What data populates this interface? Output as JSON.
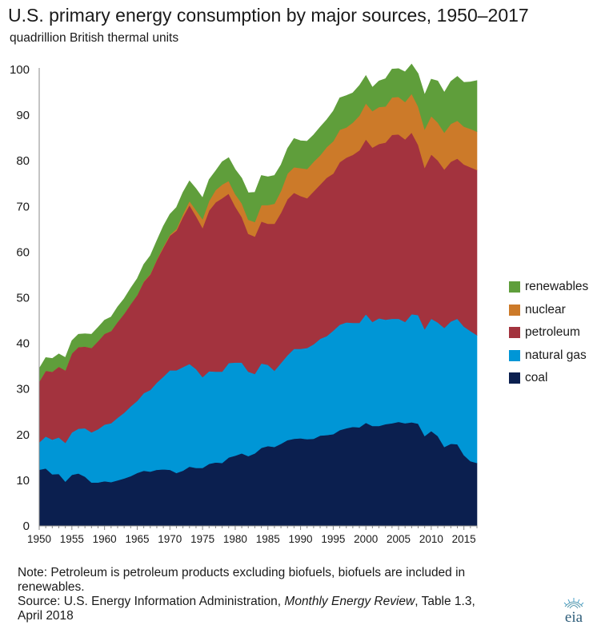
{
  "header": {
    "title": "U.S. primary energy consumption by major sources, 1950–2017",
    "subtitle": "quadrillion British thermal units"
  },
  "footer": {
    "note": "Note: Petroleum is petroleum products excluding biofuels, biofuels are included in renewables.",
    "source_prefix": "Source: U.S. Energy Information Administration, ",
    "source_italic": "Monthly Energy Review",
    "source_suffix": ", Table 1.3, April 2018"
  },
  "logo": {
    "text": "eia"
  },
  "chart_data": {
    "type": "area",
    "stacked": true,
    "x": [
      1950,
      1951,
      1952,
      1953,
      1954,
      1955,
      1956,
      1957,
      1958,
      1959,
      1960,
      1961,
      1962,
      1963,
      1964,
      1965,
      1966,
      1967,
      1968,
      1969,
      1970,
      1971,
      1972,
      1973,
      1974,
      1975,
      1976,
      1977,
      1978,
      1979,
      1980,
      1981,
      1982,
      1983,
      1984,
      1985,
      1986,
      1987,
      1988,
      1989,
      1990,
      1991,
      1992,
      1993,
      1994,
      1995,
      1996,
      1997,
      1998,
      1999,
      2000,
      2001,
      2002,
      2003,
      2004,
      2005,
      2006,
      2007,
      2008,
      2009,
      2010,
      2011,
      2012,
      2013,
      2014,
      2015,
      2016,
      2017
    ],
    "ylim": [
      0,
      100
    ],
    "yticks": [
      0,
      10,
      20,
      30,
      40,
      50,
      60,
      70,
      80,
      90,
      100
    ],
    "xticks": [
      1950,
      1955,
      1960,
      1965,
      1970,
      1975,
      1980,
      1985,
      1990,
      1995,
      2000,
      2005,
      2010,
      2015
    ],
    "grid": false,
    "legend_position": "right",
    "series": [
      {
        "name": "coal",
        "color": "#0b1f4f",
        "values": [
          12.3,
          12.6,
          11.3,
          11.4,
          9.7,
          11.2,
          11.5,
          10.8,
          9.5,
          9.5,
          9.8,
          9.6,
          10.0,
          10.4,
          10.9,
          11.6,
          12.1,
          11.9,
          12.3,
          12.4,
          12.3,
          11.6,
          12.1,
          13.0,
          12.7,
          12.7,
          13.6,
          13.9,
          13.8,
          15.0,
          15.4,
          15.9,
          15.3,
          15.9,
          17.1,
          17.5,
          17.3,
          18.0,
          18.8,
          19.1,
          19.2,
          19.0,
          19.1,
          19.8,
          19.9,
          20.1,
          21.0,
          21.4,
          21.7,
          21.6,
          22.6,
          21.9,
          21.9,
          22.3,
          22.5,
          22.8,
          22.5,
          22.7,
          22.4,
          19.7,
          20.8,
          19.7,
          17.3,
          18.0,
          17.9,
          15.5,
          14.2,
          13.8
        ]
      },
      {
        "name": "natural gas",
        "color": "#0096d6",
        "values": [
          6.0,
          7.0,
          7.6,
          8.0,
          8.5,
          9.3,
          9.8,
          10.6,
          11.0,
          11.7,
          12.4,
          12.9,
          13.7,
          14.4,
          15.3,
          15.8,
          17.0,
          17.9,
          19.1,
          20.3,
          21.8,
          22.5,
          22.7,
          22.5,
          21.7,
          19.9,
          20.3,
          19.9,
          20.0,
          20.7,
          20.4,
          19.9,
          18.5,
          17.4,
          18.5,
          17.8,
          16.7,
          17.7,
          18.6,
          19.7,
          19.6,
          20.0,
          20.7,
          21.2,
          21.7,
          22.7,
          23.1,
          23.2,
          22.8,
          22.9,
          23.8,
          22.8,
          23.6,
          22.9,
          22.9,
          22.6,
          22.2,
          23.7,
          23.8,
          23.4,
          24.6,
          24.9,
          26.1,
          26.8,
          27.5,
          28.2,
          28.5,
          28.0
        ]
      },
      {
        "name": "petroleum",
        "color": "#a3333e",
        "values": [
          13.3,
          14.4,
          14.9,
          15.5,
          15.9,
          17.3,
          17.9,
          17.9,
          18.5,
          19.3,
          19.9,
          20.2,
          21.0,
          21.7,
          22.4,
          23.2,
          24.4,
          25.3,
          26.9,
          28.3,
          29.5,
          30.6,
          32.9,
          34.8,
          33.5,
          32.7,
          35.2,
          37.1,
          38.0,
          37.1,
          34.2,
          31.9,
          30.2,
          30.1,
          31.1,
          30.9,
          32.2,
          32.9,
          34.2,
          34.2,
          33.5,
          32.8,
          33.5,
          33.8,
          34.7,
          34.4,
          35.6,
          36.1,
          36.8,
          37.8,
          38.3,
          38.2,
          38.2,
          38.8,
          40.3,
          40.4,
          40.0,
          39.8,
          37.3,
          35.4,
          36.0,
          35.5,
          34.7,
          35.0,
          35.1,
          35.5,
          35.9,
          36.2
        ]
      },
      {
        "name": "nuclear",
        "color": "#cc7a29",
        "values": [
          0,
          0,
          0,
          0,
          0,
          0,
          0,
          0,
          0,
          0,
          0,
          0,
          0,
          0,
          0,
          0,
          0.1,
          0.1,
          0.1,
          0.2,
          0.2,
          0.4,
          0.6,
          0.9,
          1.3,
          1.9,
          2.1,
          2.7,
          3.0,
          2.8,
          2.7,
          3.0,
          3.1,
          3.2,
          3.6,
          4.1,
          4.4,
          4.8,
          5.6,
          5.6,
          6.1,
          6.4,
          6.5,
          6.4,
          6.7,
          7.1,
          7.1,
          6.6,
          7.1,
          7.6,
          7.9,
          8.0,
          8.1,
          7.9,
          8.2,
          8.2,
          8.2,
          8.5,
          8.4,
          8.4,
          8.4,
          8.3,
          8.1,
          8.3,
          8.3,
          8.3,
          8.4,
          8.4
        ]
      },
      {
        "name": "renewables",
        "color": "#5f9e3b",
        "values": [
          2.9,
          2.9,
          2.9,
          2.8,
          2.8,
          2.8,
          2.8,
          2.8,
          3.0,
          3.0,
          3.0,
          3.1,
          3.3,
          3.3,
          3.5,
          3.6,
          3.7,
          4.0,
          4.1,
          4.5,
          4.5,
          4.7,
          4.8,
          4.4,
          4.7,
          4.7,
          4.7,
          4.2,
          5.0,
          5.1,
          5.4,
          5.5,
          5.9,
          6.5,
          6.5,
          6.2,
          6.2,
          5.7,
          5.5,
          6.3,
          6.0,
          6.1,
          5.9,
          6.2,
          6.0,
          6.6,
          7.0,
          7.0,
          6.5,
          6.6,
          6.1,
          5.2,
          5.7,
          6.1,
          6.2,
          6.2,
          6.6,
          6.5,
          7.2,
          7.6,
          8.1,
          9.1,
          8.8,
          9.3,
          9.7,
          9.7,
          10.3,
          11.2
        ]
      }
    ]
  }
}
